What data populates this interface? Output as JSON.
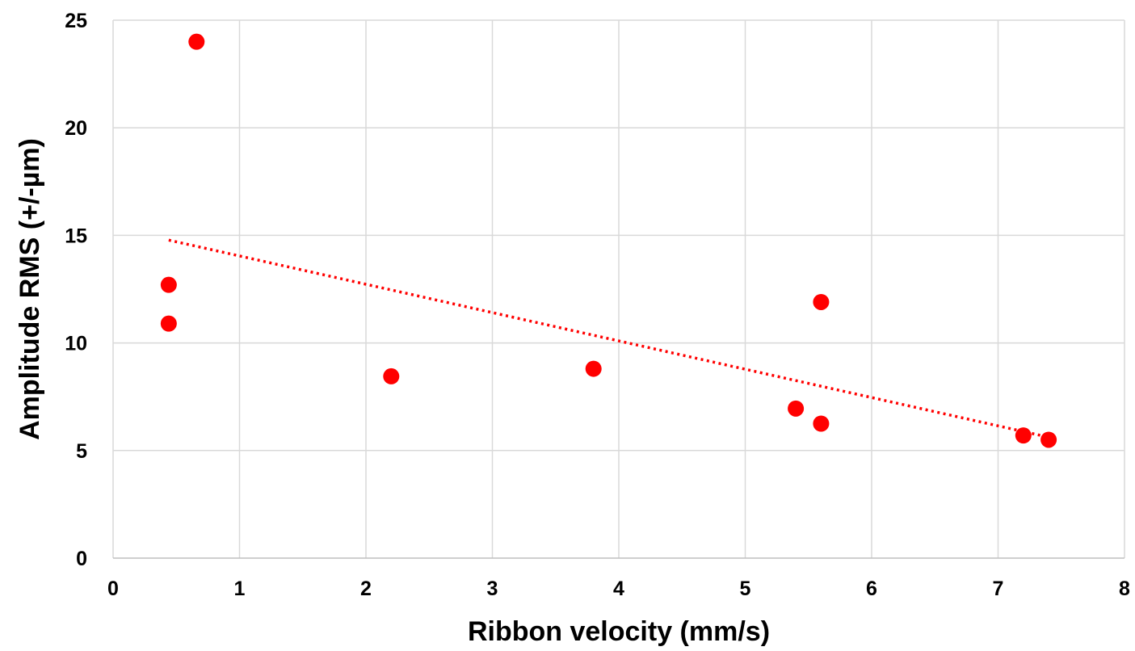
{
  "chart_data": {
    "type": "scatter",
    "title": "",
    "xlabel": "Ribbon velocity (mm/s)",
    "ylabel": "Amplitude RMS (+/-µm)",
    "xlim": [
      0,
      8
    ],
    "ylim": [
      0,
      25
    ],
    "x_ticks": [
      "0",
      "1",
      "2",
      "3",
      "4",
      "5",
      "6",
      "7",
      "8"
    ],
    "y_ticks": [
      "0",
      "5",
      "10",
      "15",
      "20",
      "25"
    ],
    "grid": true,
    "legend": "none",
    "series": [
      {
        "color": "#ff0000",
        "points": [
          {
            "x": 0.66,
            "y": 24.0
          },
          {
            "x": 0.44,
            "y": 12.7
          },
          {
            "x": 0.44,
            "y": 10.9
          },
          {
            "x": 2.2,
            "y": 8.45
          },
          {
            "x": 3.8,
            "y": 8.8
          },
          {
            "x": 5.4,
            "y": 6.95
          },
          {
            "x": 5.6,
            "y": 6.25
          },
          {
            "x": 5.6,
            "y": 11.9
          },
          {
            "x": 7.2,
            "y": 5.7
          },
          {
            "x": 7.4,
            "y": 5.5
          }
        ],
        "trendline": {
          "type": "linear",
          "style": "dotted",
          "color": "#ff0000",
          "x_range": [
            0.44,
            7.4
          ],
          "y_range": [
            14.78,
            5.62
          ]
        }
      }
    ]
  }
}
